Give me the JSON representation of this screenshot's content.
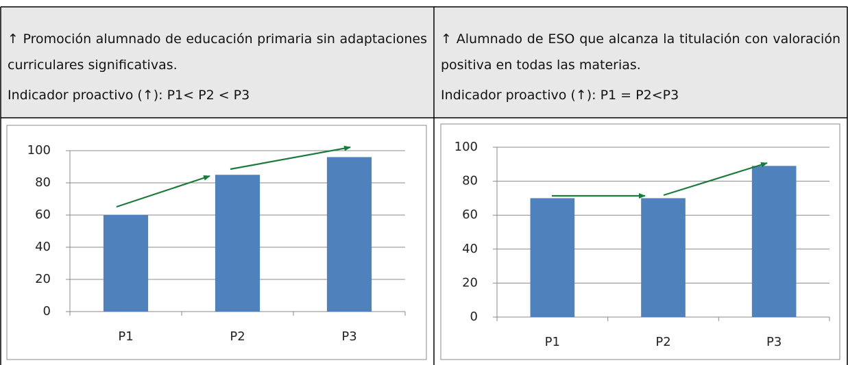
{
  "table": {
    "headers": [
      {
        "text": "↑ Promoción alumnado de educación primaria sin adaptaciones curriculares significativas.",
        "indicator": "Indicador proactivo (↑): P1< P2 < P3"
      },
      {
        "text": "↑ Alumnado de ESO que alcanza la titulación con valoración positiva en todas las materias.",
        "indicator": "Indicador proactivo (↑): P1 = P2<P3"
      }
    ]
  },
  "chart_data": [
    {
      "type": "bar",
      "categories": [
        "P1",
        "P2",
        "P3"
      ],
      "values": [
        60,
        85,
        96
      ],
      "color": "#4f81bd",
      "ylim": [
        0,
        100
      ],
      "yticks": [
        0,
        20,
        40,
        60,
        80,
        100
      ],
      "grid": true
    },
    {
      "type": "bar",
      "categories": [
        "P1",
        "P2",
        "P3"
      ],
      "values": [
        70,
        70,
        89
      ],
      "color": "#4f81bd",
      "ylim": [
        0,
        100
      ],
      "yticks": [
        0,
        20,
        40,
        60,
        80,
        100
      ],
      "grid": true
    }
  ]
}
